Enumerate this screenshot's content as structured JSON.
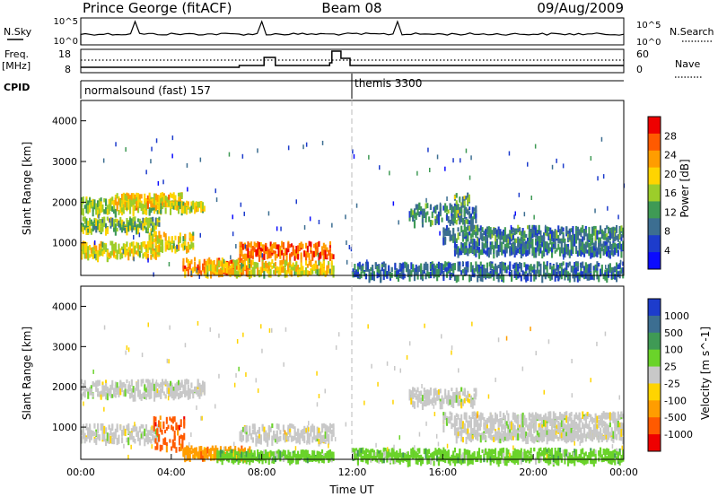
{
  "header": {
    "station": "Prince George (fitACF)",
    "beam": "Beam 08",
    "date": "09/Aug/2009"
  },
  "top_panels": {
    "nsky_label": "N.Sky",
    "nsearch_label": "N.Search",
    "freq_label_1": "Freq.",
    "freq_label_2": "[MHz]",
    "nave_label": "Nave",
    "cpid_label": "CPID",
    "nsky_ticks": [
      "10^5",
      "10^0"
    ],
    "nsearch_ticks": [
      "10^5",
      "10^0"
    ],
    "freq_ticks": [
      "18",
      "8"
    ],
    "nave_ticks": [
      "60",
      "0"
    ]
  },
  "cpid": {
    "left": "normalsound (fast) 157",
    "right": "themis 3300"
  },
  "colors": {
    "axes": "#000000",
    "dashed_divider": "#bbbbbb"
  },
  "chart_data": [
    {
      "type": "heatmap",
      "name": "power-panel",
      "ylabel": "Slant Range [km]",
      "ylim": [
        200,
        4500
      ],
      "yticks": [
        "1000",
        "2000",
        "3000",
        "4000"
      ],
      "colorbar_label": "Power [dB]",
      "colorbar_ticks": [
        "28",
        "24",
        "20",
        "16",
        "12",
        "8",
        "4"
      ],
      "colorbar_colors": [
        "#ee0000",
        "#ff5a00",
        "#ff9d00",
        "#ffd400",
        "#9ccd2a",
        "#3f9a55",
        "#3c6e91",
        "#1d3ccc",
        "#0b0bff"
      ],
      "bands": [
        {
          "t0": 0.0,
          "t1": 4.0,
          "r0": 1800,
          "r1": 2150,
          "intensity": 0.5
        },
        {
          "t0": 1.5,
          "t1": 4.5,
          "r0": 1950,
          "r1": 2250,
          "intensity": 0.65
        },
        {
          "t0": 4.0,
          "t1": 5.5,
          "r0": 1850,
          "r1": 2050,
          "intensity": 0.55
        },
        {
          "t0": 0.0,
          "t1": 3.5,
          "r0": 1350,
          "r1": 1650,
          "intensity": 0.45
        },
        {
          "t0": 0.0,
          "t1": 3.5,
          "r0": 700,
          "r1": 1050,
          "intensity": 0.6
        },
        {
          "t0": 3.0,
          "t1": 5.0,
          "r0": 900,
          "r1": 1300,
          "intensity": 0.6
        },
        {
          "t0": 4.5,
          "t1": 7.5,
          "r0": 300,
          "r1": 650,
          "intensity": 0.8
        },
        {
          "t0": 7.0,
          "t1": 11.2,
          "r0": 700,
          "r1": 1050,
          "intensity": 0.85
        },
        {
          "t0": 5.5,
          "t1": 11.2,
          "r0": 300,
          "r1": 600,
          "intensity": 0.6
        },
        {
          "t0": 12.0,
          "t1": 24.0,
          "r0": 200,
          "r1": 550,
          "intensity": 0.25
        },
        {
          "t0": 14.5,
          "t1": 17.5,
          "r0": 1550,
          "r1": 2000,
          "intensity": 0.3
        },
        {
          "t0": 16.0,
          "t1": 24.0,
          "r0": 1100,
          "r1": 1450,
          "intensity": 0.3
        },
        {
          "t0": 16.5,
          "t1": 24.0,
          "r0": 800,
          "r1": 1050,
          "intensity": 0.25
        },
        {
          "t0": 16.5,
          "t1": 17.2,
          "r0": 1800,
          "r1": 2250,
          "intensity": 0.4
        }
      ]
    },
    {
      "type": "heatmap",
      "name": "velocity-panel",
      "ylabel": "Slant Range [km]",
      "xlabel": "Time UT",
      "ylim": [
        200,
        4500
      ],
      "yticks": [
        "1000",
        "2000",
        "3000",
        "4000"
      ],
      "xticks": [
        "00:00",
        "04:00",
        "08:00",
        "12:00",
        "16:00",
        "20:00",
        "00:00"
      ],
      "xlim": [
        0,
        24
      ],
      "colorbar_label": "Velocity [m s^-1]",
      "colorbar_ticks": [
        "1000",
        "500",
        "100",
        "25",
        "-25",
        "-100",
        "-500",
        "-1000"
      ],
      "colorbar_colors": [
        "#1d3ccc",
        "#3c6e91",
        "#3f9a55",
        "#6ad32a",
        "#c8c8c8",
        "#ffd400",
        "#ff9d00",
        "#ff5a00",
        "#ee0000"
      ],
      "bands": [
        {
          "t0": 0.0,
          "t1": 5.5,
          "r0": 1800,
          "r1": 2200,
          "vclass": 4
        },
        {
          "t0": 0.0,
          "t1": 3.5,
          "r0": 700,
          "r1": 1100,
          "vclass": 4
        },
        {
          "t0": 3.2,
          "t1": 4.6,
          "r0": 500,
          "r1": 1300,
          "vclass": 7
        },
        {
          "t0": 4.5,
          "t1": 7.5,
          "r0": 300,
          "r1": 550,
          "vclass": 6
        },
        {
          "t0": 7.0,
          "t1": 11.2,
          "r0": 700,
          "r1": 1100,
          "vclass": 4
        },
        {
          "t0": 6.0,
          "t1": 11.2,
          "r0": 250,
          "r1": 450,
          "vclass": 3
        },
        {
          "t0": 12.0,
          "t1": 24.0,
          "r0": 200,
          "r1": 500,
          "vclass": 3
        },
        {
          "t0": 14.5,
          "t1": 17.5,
          "r0": 1600,
          "r1": 2000,
          "vclass": 4
        },
        {
          "t0": 16.0,
          "t1": 24.0,
          "r0": 1050,
          "r1": 1400,
          "vclass": 4
        },
        {
          "t0": 16.5,
          "t1": 24.0,
          "r0": 750,
          "r1": 1000,
          "vclass": 4
        }
      ]
    }
  ]
}
